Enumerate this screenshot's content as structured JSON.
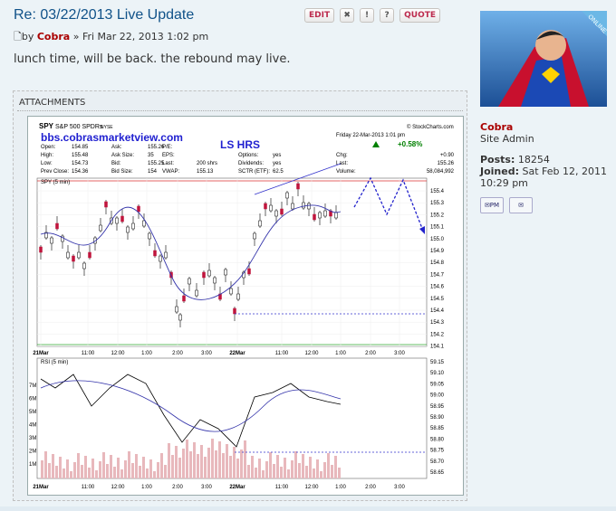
{
  "post": {
    "title": "Re: 03/22/2013 Live Update",
    "by": "by",
    "author": "Cobra",
    "separator": "»",
    "date": "Fri Mar 22, 2013 1:02 pm",
    "body": "lunch time, will be back. the rebound may live.",
    "buttons": {
      "edit": "EDIT",
      "quote": "QUOTE"
    },
    "attachments_label": "ATTACHMENTS"
  },
  "chart_image": {
    "symbol": "SPY",
    "name": "S&P 500 SPDRs",
    "exchange": "NYSE",
    "source": "© StockCharts.com",
    "site": "bbs.cobrasmarketview.com",
    "annotation": "LS HRS",
    "timestamp": "Friday  22-Mar-2013  1:01 pm",
    "change_pct": "+0.58%",
    "quote_fields": [
      [
        "Open:",
        "154.85"
      ],
      [
        "High:",
        "155.48"
      ],
      [
        "Low:",
        "154.73"
      ],
      [
        "Prev Close:",
        "154.36"
      ],
      [
        "Ask:",
        "155.26"
      ],
      [
        "Ask Size:",
        "35"
      ],
      [
        "Bid:",
        "155.25"
      ],
      [
        "Bid Size:",
        "154"
      ],
      [
        "P/E:",
        ""
      ],
      [
        "EPS:",
        ""
      ],
      [
        "Last:",
        "200 shrs"
      ],
      [
        "VWAP:",
        "155.13"
      ],
      [
        "Options:",
        "yes"
      ],
      [
        "Dividends:",
        "yes"
      ],
      [
        "SCTR (ETF):",
        "62.5"
      ],
      [
        "Chg:",
        "+0.90"
      ],
      [
        "Last:",
        "155.26"
      ],
      [
        "Volume:",
        "58,084,992"
      ]
    ],
    "price_panel_label": "SPY (5 min)",
    "rsi_panel_label": "RSI (5 min)",
    "price_ticks": [
      "155.4",
      "155.3",
      "155.2",
      "155.1",
      "155.0",
      "154.9",
      "154.8",
      "154.7",
      "154.6",
      "154.5",
      "154.4",
      "154.3",
      "154.2",
      "154.1"
    ],
    "rsi_ticks": [
      "59.15",
      "59.10",
      "59.05",
      "59.00",
      "58.95",
      "58.90",
      "58.85",
      "58.80",
      "58.75",
      "58.70",
      "58.65"
    ],
    "volume_ticks": [
      "7M",
      "6M",
      "5M",
      "4M",
      "3M",
      "2M",
      "1M"
    ],
    "time_ticks": [
      "21Mar",
      "11:00",
      "12:00",
      "1:00",
      "2:00",
      "3:00",
      "22Mar",
      "11:00",
      "12:00",
      "1:00",
      "2:00",
      "3:00"
    ]
  },
  "profile": {
    "online": "ONLINE",
    "username": "Cobra",
    "rank": "Site Admin",
    "posts_label": "Posts:",
    "posts": "18254",
    "joined_label": "Joined:",
    "joined": "Sat Feb 12, 2011 10:29 pm",
    "pm": "PM"
  }
}
